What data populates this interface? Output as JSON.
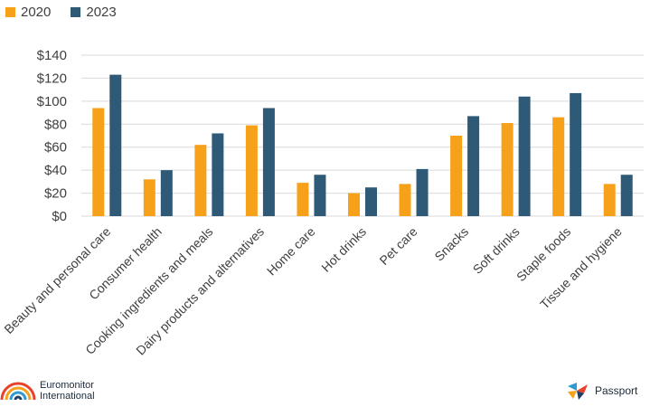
{
  "legend": {
    "series_a": "2020",
    "series_b": "2023"
  },
  "colors": {
    "series_a": "#F7A11B",
    "series_b": "#2E5A78",
    "grid": "#D9D9D9",
    "text": "#404040"
  },
  "branding": {
    "euromonitor_line1": "Euromonitor",
    "euromonitor_line2": "International",
    "passport": "Passport"
  },
  "chart_data": {
    "type": "bar",
    "categories": [
      "Beauty and personal care",
      "Consumer health",
      "Cooking ingredients and meals",
      "Dairy products and alternatives",
      "Home care",
      "Hot drinks",
      "Pet care",
      "Snacks",
      "Soft drinks",
      "Staple foods",
      "Tissue and hygiene"
    ],
    "series": [
      {
        "name": "2020",
        "values": [
          94,
          32,
          62,
          79,
          29,
          20,
          28,
          70,
          81,
          86,
          28
        ]
      },
      {
        "name": "2023",
        "values": [
          123,
          40,
          72,
          94,
          36,
          25,
          41,
          87,
          104,
          107,
          36
        ]
      }
    ],
    "ylim": [
      0,
      140
    ],
    "yticks": [
      "$0",
      "$20",
      "$40",
      "$60",
      "$80",
      "$100",
      "$120",
      "$140"
    ],
    "grid": true,
    "legend_position": "top-left"
  }
}
